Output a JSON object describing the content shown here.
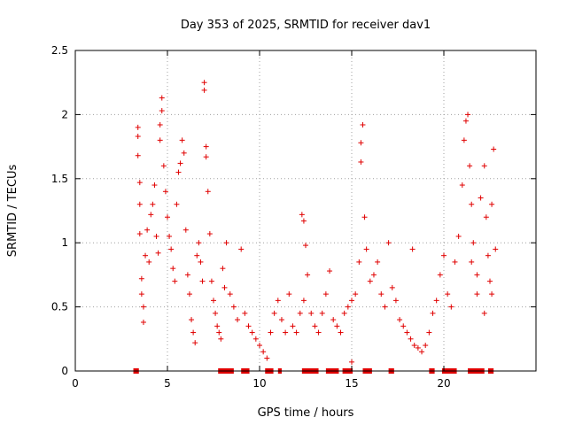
{
  "chart_data": {
    "type": "scatter",
    "title": "Day 353 of 2025, SRMTID for receiver dav1",
    "xlabel": "GPS time / hours",
    "ylabel": "SRMTID / TECUs",
    "xlim": [
      0,
      25
    ],
    "ylim": [
      0,
      2.5
    ],
    "xticks": [
      "0",
      "5",
      "10",
      "15",
      "20"
    ],
    "yticks": [
      "0",
      "0.5",
      "1",
      "1.5",
      "2",
      "2.5"
    ],
    "grid": true,
    "marker": "+",
    "color": "#e00000",
    "series": [
      {
        "name": "SRMTID",
        "points": [
          [
            3.4,
            1.9
          ],
          [
            3.4,
            1.83
          ],
          [
            3.4,
            1.68
          ],
          [
            3.5,
            1.47
          ],
          [
            3.5,
            1.3
          ],
          [
            3.5,
            1.07
          ],
          [
            3.6,
            0.72
          ],
          [
            3.6,
            0.6
          ],
          [
            3.7,
            0.5
          ],
          [
            3.7,
            0.38
          ],
          [
            3.8,
            0.9
          ],
          [
            3.9,
            1.1
          ],
          [
            4.0,
            0.85
          ],
          [
            4.1,
            1.22
          ],
          [
            4.2,
            1.3
          ],
          [
            4.3,
            1.45
          ],
          [
            4.4,
            1.05
          ],
          [
            4.5,
            0.92
          ],
          [
            4.6,
            1.8
          ],
          [
            4.6,
            1.92
          ],
          [
            4.7,
            2.13
          ],
          [
            4.7,
            2.03
          ],
          [
            4.8,
            1.6
          ],
          [
            4.9,
            1.4
          ],
          [
            5.0,
            1.2
          ],
          [
            5.1,
            1.05
          ],
          [
            5.2,
            0.95
          ],
          [
            5.3,
            0.8
          ],
          [
            5.4,
            0.7
          ],
          [
            5.5,
            1.3
          ],
          [
            5.6,
            1.55
          ],
          [
            5.7,
            1.62
          ],
          [
            5.8,
            1.8
          ],
          [
            5.9,
            1.7
          ],
          [
            6.0,
            1.1
          ],
          [
            6.1,
            0.75
          ],
          [
            6.2,
            0.6
          ],
          [
            6.3,
            0.4
          ],
          [
            6.4,
            0.3
          ],
          [
            6.5,
            0.22
          ],
          [
            6.6,
            0.9
          ],
          [
            6.7,
            1.0
          ],
          [
            6.8,
            0.85
          ],
          [
            6.9,
            0.7
          ],
          [
            7.0,
            2.25
          ],
          [
            7.0,
            2.19
          ],
          [
            7.1,
            1.75
          ],
          [
            7.1,
            1.67
          ],
          [
            7.2,
            1.4
          ],
          [
            7.3,
            1.07
          ],
          [
            7.4,
            0.7
          ],
          [
            7.5,
            0.55
          ],
          [
            7.6,
            0.45
          ],
          [
            7.7,
            0.35
          ],
          [
            7.8,
            0.3
          ],
          [
            7.9,
            0.25
          ],
          [
            8.0,
            0.8
          ],
          [
            8.1,
            0.65
          ],
          [
            8.2,
            1.0
          ],
          [
            8.4,
            0.6
          ],
          [
            8.6,
            0.5
          ],
          [
            8.8,
            0.4
          ],
          [
            9.0,
            0.95
          ],
          [
            9.2,
            0.45
          ],
          [
            9.4,
            0.35
          ],
          [
            9.6,
            0.3
          ],
          [
            9.8,
            0.25
          ],
          [
            10.0,
            0.2
          ],
          [
            10.2,
            0.15
          ],
          [
            10.4,
            0.1
          ],
          [
            10.6,
            0.3
          ],
          [
            10.8,
            0.45
          ],
          [
            11.0,
            0.55
          ],
          [
            11.2,
            0.4
          ],
          [
            11.4,
            0.3
          ],
          [
            11.6,
            0.6
          ],
          [
            11.8,
            0.35
          ],
          [
            12.0,
            0.3
          ],
          [
            12.2,
            0.45
          ],
          [
            12.4,
            0.55
          ],
          [
            12.3,
            1.22
          ],
          [
            12.4,
            1.17
          ],
          [
            12.5,
            0.98
          ],
          [
            12.6,
            0.75
          ],
          [
            12.8,
            0.45
          ],
          [
            13.0,
            0.35
          ],
          [
            13.2,
            0.3
          ],
          [
            13.4,
            0.45
          ],
          [
            13.6,
            0.6
          ],
          [
            13.8,
            0.78
          ],
          [
            14.0,
            0.4
          ],
          [
            14.2,
            0.35
          ],
          [
            14.4,
            0.3
          ],
          [
            14.6,
            0.45
          ],
          [
            14.8,
            0.5
          ],
          [
            15.0,
            0.55
          ],
          [
            15.0,
            0.07
          ],
          [
            15.2,
            0.6
          ],
          [
            15.4,
            0.85
          ],
          [
            15.5,
            1.63
          ],
          [
            15.5,
            1.78
          ],
          [
            15.6,
            1.92
          ],
          [
            15.7,
            1.2
          ],
          [
            15.8,
            0.95
          ],
          [
            16.0,
            0.7
          ],
          [
            16.2,
            0.75
          ],
          [
            16.4,
            0.85
          ],
          [
            16.6,
            0.6
          ],
          [
            16.8,
            0.5
          ],
          [
            17.0,
            1.0
          ],
          [
            17.2,
            0.65
          ],
          [
            17.4,
            0.55
          ],
          [
            17.6,
            0.4
          ],
          [
            17.8,
            0.35
          ],
          [
            18.0,
            0.3
          ],
          [
            18.2,
            0.25
          ],
          [
            18.3,
            0.95
          ],
          [
            18.4,
            0.2
          ],
          [
            18.6,
            0.18
          ],
          [
            18.8,
            0.15
          ],
          [
            19.0,
            0.2
          ],
          [
            19.2,
            0.3
          ],
          [
            19.4,
            0.45
          ],
          [
            19.6,
            0.55
          ],
          [
            19.8,
            0.75
          ],
          [
            20.0,
            0.9
          ],
          [
            20.2,
            0.6
          ],
          [
            20.4,
            0.5
          ],
          [
            20.6,
            0.85
          ],
          [
            20.8,
            1.05
          ],
          [
            21.0,
            1.45
          ],
          [
            21.1,
            1.8
          ],
          [
            21.2,
            1.95
          ],
          [
            21.3,
            2.0
          ],
          [
            21.4,
            1.6
          ],
          [
            21.5,
            1.3
          ],
          [
            21.6,
            1.0
          ],
          [
            21.8,
            0.75
          ],
          [
            22.0,
            1.35
          ],
          [
            22.2,
            1.6
          ],
          [
            22.3,
            1.2
          ],
          [
            22.4,
            0.9
          ],
          [
            22.5,
            0.7
          ],
          [
            22.6,
            1.3
          ],
          [
            22.7,
            1.73
          ],
          [
            22.8,
            0.95
          ],
          [
            22.6,
            0.6
          ],
          [
            22.2,
            0.45
          ],
          [
            21.8,
            0.6
          ],
          [
            21.5,
            0.85
          ]
        ]
      }
    ],
    "zero_segments": [
      [
        3.15,
        3.45
      ],
      [
        7.75,
        8.6
      ],
      [
        9.0,
        9.45
      ],
      [
        10.3,
        10.75
      ],
      [
        11.0,
        11.2
      ],
      [
        12.3,
        13.2
      ],
      [
        13.6,
        14.3
      ],
      [
        14.5,
        15.05
      ],
      [
        15.6,
        16.1
      ],
      [
        17.0,
        17.3
      ],
      [
        19.2,
        19.5
      ],
      [
        19.9,
        20.7
      ],
      [
        21.3,
        22.2
      ],
      [
        22.4,
        22.7
      ]
    ]
  }
}
